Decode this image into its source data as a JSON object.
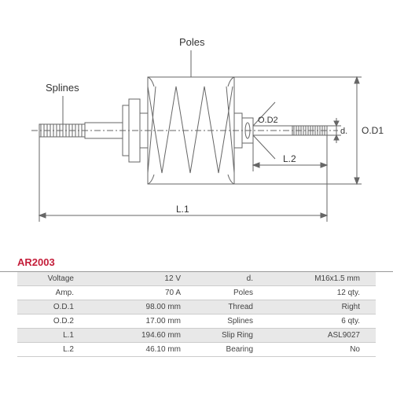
{
  "diagram": {
    "labels": {
      "splines": "Splines",
      "poles": "Poles",
      "od1": "O.D1",
      "od2": "O.D2",
      "d": "d.",
      "l1": "L.1",
      "l2": "L.2"
    },
    "stroke_color": "#666666",
    "stroke_width": 1,
    "text_color": "#333333",
    "label_fontsize": 13
  },
  "part_code": "AR2003",
  "specs": {
    "rows": [
      {
        "k1": "Voltage",
        "v1": "12 V",
        "k2": "d.",
        "v2": "M16x1.5 mm"
      },
      {
        "k1": "Amp.",
        "v1": "70 A",
        "k2": "Poles",
        "v2": "12 qty."
      },
      {
        "k1": "O.D.1",
        "v1": "98.00 mm",
        "k2": "Thread",
        "v2": "Right"
      },
      {
        "k1": "O.D.2",
        "v1": "17.00 mm",
        "k2": "Splines",
        "v2": "6 qty."
      },
      {
        "k1": "L.1",
        "v1": "194.60 mm",
        "k2": "Slip Ring",
        "v2": "ASL9027"
      },
      {
        "k1": "L.2",
        "v1": "46.10 mm",
        "k2": "Bearing",
        "v2": "No"
      }
    ]
  }
}
